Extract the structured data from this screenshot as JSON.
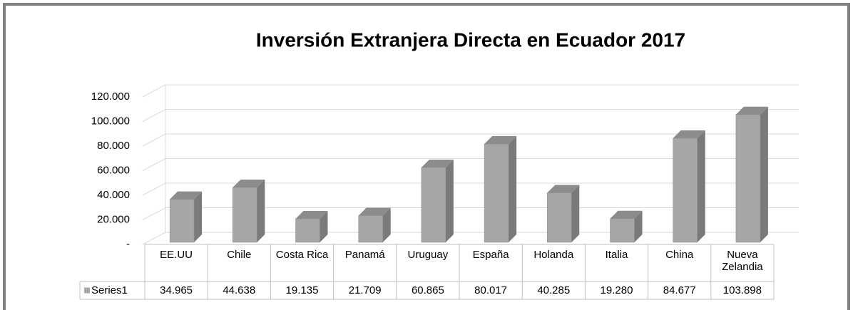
{
  "chart_data": {
    "type": "bar3d",
    "title": "Inversión Extranjera Directa en Ecuador 2017",
    "categories": [
      "EE.UU",
      "Chile",
      "Costa Rica",
      "Panamá",
      "Uruguay",
      "España",
      "Holanda",
      "Italia",
      "China",
      "Nueva Zelandia"
    ],
    "series": [
      {
        "name": "Series1",
        "color": "#a6a6a6",
        "values": [
          34965,
          44638,
          19135,
          21709,
          60865,
          80017,
          40285,
          19280,
          84677,
          103898
        ],
        "value_labels": [
          "34.965",
          "44.638",
          "19.135",
          "21.709",
          "60.865",
          "80.017",
          "40.285",
          "19.280",
          "84.677",
          "103.898"
        ]
      }
    ],
    "ylim": [
      0,
      120000
    ],
    "yticks": [
      {
        "value": 0,
        "label": "-"
      },
      {
        "value": 20000,
        "label": "20.000"
      },
      {
        "value": 40000,
        "label": "40.000"
      },
      {
        "value": 60000,
        "label": "60.000"
      },
      {
        "value": 80000,
        "label": "80.000"
      },
      {
        "value": 100000,
        "label": "100.000"
      },
      {
        "value": 120000,
        "label": "120.000"
      }
    ],
    "grid": true
  }
}
